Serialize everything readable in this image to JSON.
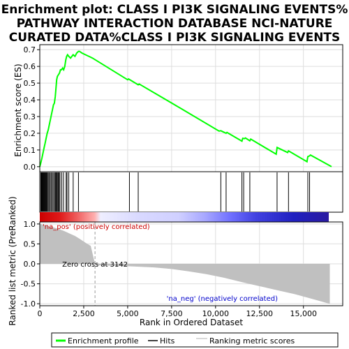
{
  "chart_data": {
    "type": "line",
    "title": "Enrichment plot: CLASS I PI3K SIGNALING EVENTS%\nPATHWAY INTERACTION DATABASE NCI-NATURE\nCURATED DATA%CLASS I PI3K SIGNALING EVENTS",
    "title_lines": [
      "Enrichment plot: CLASS I PI3K SIGNALING EVENTS%",
      "PATHWAY INTERACTION DATABASE NCI-NATURE",
      "CURATED DATA%CLASS I PI3K SIGNALING EVENTS"
    ],
    "top_panel": {
      "ylabel": "Enrichment score (ES)",
      "ylim": [
        -0.03,
        0.73
      ],
      "yticks": [
        0.0,
        0.1,
        0.2,
        0.3,
        0.4,
        0.5,
        0.6,
        0.7
      ],
      "ytick_labels": [
        "0.0",
        "0.1",
        "0.2",
        "0.3",
        "0.4",
        "0.5",
        "0.6",
        "0.7"
      ],
      "grid": true,
      "line_color": "#00ff00",
      "es_profile": {
        "x": [
          0,
          50,
          120,
          180,
          240,
          300,
          360,
          420,
          480,
          540,
          600,
          660,
          720,
          780,
          830,
          880,
          920,
          960,
          1000,
          1060,
          1120,
          1180,
          1240,
          1300,
          1360,
          1420,
          1480,
          1530,
          1580,
          1650,
          1750,
          1900,
          2000,
          2100,
          2200,
          2260,
          2400,
          3000,
          5000,
          5050,
          5600,
          5650,
          8000,
          10200,
          10300,
          10600,
          10650,
          11500,
          11550,
          11650,
          11700,
          11950,
          12000,
          13450,
          13500,
          14100,
          14150,
          15200,
          15250,
          15350,
          15400,
          16600
        ],
        "y": [
          0.0,
          0.02,
          0.05,
          0.08,
          0.11,
          0.14,
          0.17,
          0.2,
          0.22,
          0.25,
          0.28,
          0.31,
          0.34,
          0.37,
          0.38,
          0.42,
          0.47,
          0.52,
          0.54,
          0.55,
          0.56,
          0.58,
          0.58,
          0.59,
          0.58,
          0.6,
          0.64,
          0.66,
          0.67,
          0.66,
          0.65,
          0.67,
          0.66,
          0.68,
          0.69,
          0.69,
          0.68,
          0.65,
          0.52,
          0.525,
          0.49,
          0.495,
          0.35,
          0.213,
          0.215,
          0.2,
          0.205,
          0.153,
          0.17,
          0.168,
          0.172,
          0.155,
          0.165,
          0.075,
          0.115,
          0.085,
          0.095,
          0.03,
          0.06,
          0.065,
          0.07,
          0.0
        ]
      }
    },
    "hits": [
      60,
      100,
      140,
      180,
      220,
      260,
      300,
      340,
      380,
      420,
      470,
      520,
      580,
      640,
      700,
      760,
      830,
      880,
      920,
      960,
      1000,
      1050,
      1100,
      1150,
      1250,
      1350,
      1500,
      1550,
      1650,
      1900,
      2200,
      5100,
      5600,
      10300,
      10600,
      11500,
      11600,
      11950,
      13500,
      14150,
      15250,
      15350
    ],
    "bottom_panel": {
      "ylabel": "Ranked list metric (PreRanked)",
      "xlabel": "Rank in Ordered Dataset",
      "ylim": [
        -1.05,
        1.05
      ],
      "yticks": [
        1.0,
        0.5,
        0.0,
        -0.5,
        -1.0
      ],
      "ytick_labels": [
        "1.0",
        "0.5",
        "0.0",
        "-0.5",
        "-1.0"
      ],
      "xlim": [
        0,
        16500
      ],
      "xticks": [
        0,
        2500,
        5000,
        7500,
        10000,
        12500,
        15000
      ],
      "xtick_labels": [
        "0",
        "2,500",
        "5,000",
        "7,500",
        "10,000",
        "12,500",
        "15,000"
      ],
      "zero_cross": 3142,
      "zero_cross_label": "Zero cross at 3142",
      "pos_label": "'na_pos' (positively correlated)",
      "neg_label": "'na_neg' (negatively correlated)",
      "metric_profile": {
        "x": [
          0,
          200,
          500,
          800,
          1100,
          1400,
          1700,
          2000,
          2300,
          2600,
          2900,
          3142,
          3400,
          5000,
          6500,
          7500,
          8500,
          9500,
          10500,
          11500,
          12500,
          13500,
          14500,
          15500,
          16000,
          16300,
          16500
        ],
        "y": [
          1.0,
          0.98,
          0.95,
          0.91,
          0.87,
          0.82,
          0.76,
          0.7,
          0.62,
          0.53,
          0.45,
          0.0,
          -0.04,
          -0.06,
          -0.09,
          -0.13,
          -0.19,
          -0.26,
          -0.35,
          -0.46,
          -0.56,
          -0.66,
          -0.76,
          -0.88,
          -0.94,
          -0.98,
          -1.0
        ]
      }
    },
    "legend": {
      "items": [
        {
          "label": "Enrichment profile",
          "color": "#00ff00"
        },
        {
          "label": "Hits",
          "color": "#000000"
        },
        {
          "label": "Ranking metric scores",
          "color": "#cccccc"
        }
      ]
    }
  }
}
